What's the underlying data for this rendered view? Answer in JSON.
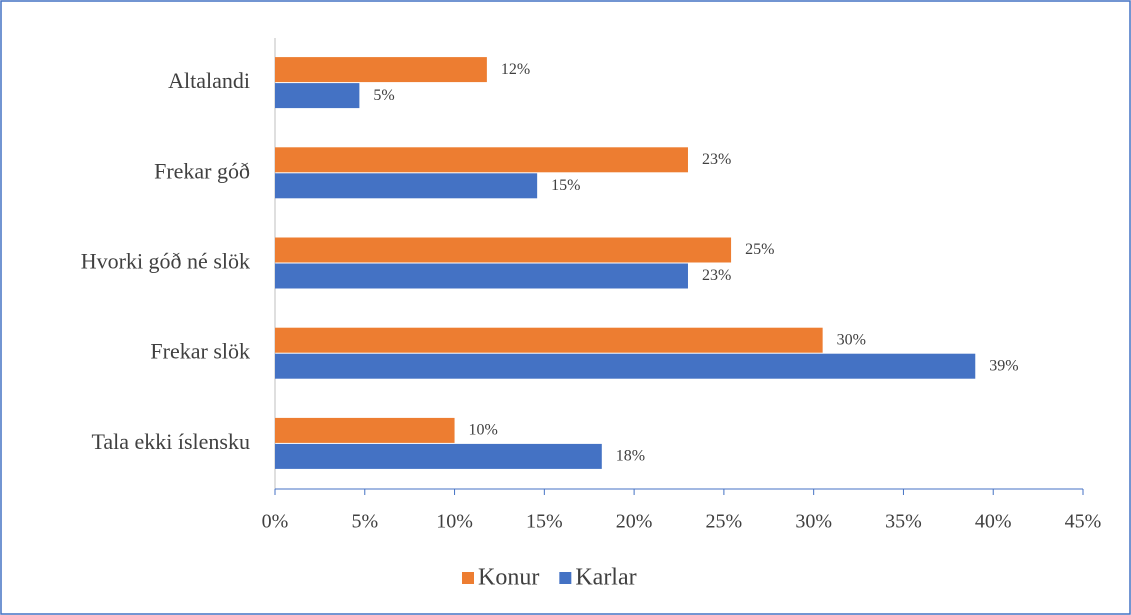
{
  "chart_data": {
    "type": "barh",
    "categories": [
      "Altalandi",
      "Frekar góð",
      "Hvorki góð né slök",
      "Frekar slök",
      "Tala ekki íslensku"
    ],
    "series": [
      {
        "name": "Konur",
        "color": "#ed7d31",
        "values": [
          11.8,
          23.0,
          25.4,
          30.5,
          10.0
        ],
        "value_labels": [
          "12%",
          "23%",
          "25%",
          "30%",
          "10%"
        ]
      },
      {
        "name": "Karlar",
        "color": "#4472c4",
        "values": [
          4.7,
          14.6,
          23.0,
          39.0,
          18.2
        ],
        "value_labels": [
          "5%",
          "15%",
          "23%",
          "39%",
          "18%"
        ]
      }
    ],
    "xlim": [
      0,
      45
    ],
    "xticks": [
      {
        "value": 0,
        "label": "0%"
      },
      {
        "value": 5,
        "label": "5%"
      },
      {
        "value": 10,
        "label": "10%"
      },
      {
        "value": 15,
        "label": "15%"
      },
      {
        "value": 20,
        "label": "20%"
      },
      {
        "value": 25,
        "label": "25%"
      },
      {
        "value": 30,
        "label": "30%"
      },
      {
        "value": 35,
        "label": "35%"
      },
      {
        "value": 40,
        "label": "40%"
      },
      {
        "value": 45,
        "label": "45%"
      }
    ],
    "grid": false,
    "legend": "bottom"
  }
}
